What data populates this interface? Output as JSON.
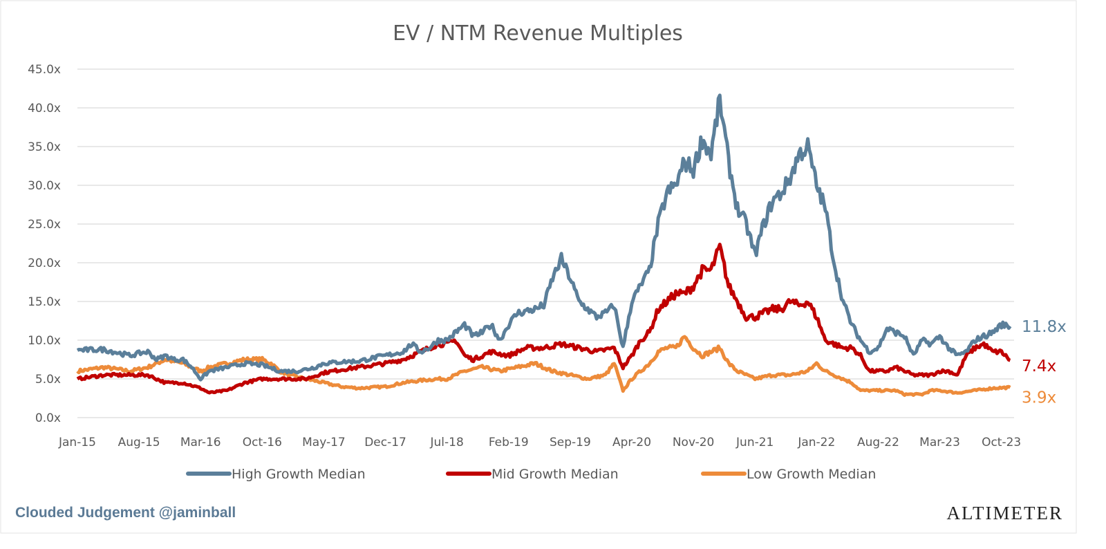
{
  "chart_data": {
    "type": "line",
    "title": "EV / NTM Revenue Multiples",
    "xlabel": "",
    "ylabel": "",
    "ylim": [
      0,
      45
    ],
    "y_ticks": [
      "0.0x",
      "5.0x",
      "10.0x",
      "15.0x",
      "20.0x",
      "25.0x",
      "30.0x",
      "35.0x",
      "40.0x",
      "45.0x"
    ],
    "y_tick_values": [
      0,
      5,
      10,
      15,
      20,
      25,
      30,
      35,
      40,
      45
    ],
    "x_ticks": [
      "Jan-15",
      "Aug-15",
      "Mar-16",
      "Oct-16",
      "May-17",
      "Dec-17",
      "Jul-18",
      "Feb-19",
      "Sep-19",
      "Apr-20",
      "Nov-20",
      "Jun-21",
      "Jan-22",
      "Aug-22",
      "Mar-23",
      "Oct-23"
    ],
    "x_tick_dates": [
      "2015-01",
      "2015-08",
      "2016-03",
      "2016-10",
      "2017-05",
      "2017-12",
      "2018-07",
      "2019-02",
      "2019-09",
      "2020-04",
      "2020-11",
      "2021-06",
      "2022-01",
      "2022-08",
      "2023-03",
      "2023-10"
    ],
    "xlim": [
      "2015-01",
      "2023-11"
    ],
    "grid": "horizontal",
    "legend_placement": "bottom",
    "series": [
      {
        "name": "High Growth Median",
        "color": "#5b7f9a",
        "end_label": "11.8x",
        "points": [
          [
            "2015-01",
            8.7
          ],
          [
            "2015-04",
            8.8
          ],
          [
            "2015-07",
            8.0
          ],
          [
            "2015-08",
            8.3
          ],
          [
            "2015-09",
            8.5
          ],
          [
            "2015-10",
            7.5
          ],
          [
            "2015-11",
            8.0
          ],
          [
            "2015-12",
            7.5
          ],
          [
            "2016-01",
            7.5
          ],
          [
            "2016-02",
            6.5
          ],
          [
            "2016-03",
            5.0
          ],
          [
            "2016-04",
            6.0
          ],
          [
            "2016-06",
            6.5
          ],
          [
            "2016-08",
            7.0
          ],
          [
            "2016-10",
            6.8
          ],
          [
            "2016-12",
            6.0
          ],
          [
            "2017-02",
            6.0
          ],
          [
            "2017-04",
            6.5
          ],
          [
            "2017-05",
            7.0
          ],
          [
            "2017-07",
            7.2
          ],
          [
            "2017-09",
            7.3
          ],
          [
            "2017-11",
            7.8
          ],
          [
            "2017-12",
            8.0
          ],
          [
            "2018-02",
            8.5
          ],
          [
            "2018-03",
            9.5
          ],
          [
            "2018-04",
            8.5
          ],
          [
            "2018-05",
            9.0
          ],
          [
            "2018-06",
            10.0
          ],
          [
            "2018-07",
            10.0
          ],
          [
            "2018-08",
            11.0
          ],
          [
            "2018-09",
            12.0
          ],
          [
            "2018-10",
            10.5
          ],
          [
            "2018-11",
            11.0
          ],
          [
            "2018-12",
            12.0
          ],
          [
            "2019-01",
            10.0
          ],
          [
            "2019-02",
            12.0
          ],
          [
            "2019-03",
            13.5
          ],
          [
            "2019-05",
            14.0
          ],
          [
            "2019-06",
            14.5
          ],
          [
            "2019-07",
            18.0
          ],
          [
            "2019-08",
            20.5
          ],
          [
            "2019-09",
            18.0
          ],
          [
            "2019-10",
            15.0
          ],
          [
            "2019-11",
            14.0
          ],
          [
            "2019-12",
            13.0
          ],
          [
            "2020-01",
            13.5
          ],
          [
            "2020-02",
            14.5
          ],
          [
            "2020-03",
            9.0
          ],
          [
            "2020-04",
            15.0
          ],
          [
            "2020-05",
            17.0
          ],
          [
            "2020-06",
            19.0
          ],
          [
            "2020-07",
            25.0
          ],
          [
            "2020-08",
            29.0
          ],
          [
            "2020-09",
            30.0
          ],
          [
            "2020-10",
            33.0
          ],
          [
            "2020-11",
            32.0
          ],
          [
            "2020-12",
            36.0
          ],
          [
            "2021-01",
            34.0
          ],
          [
            "2021-02",
            41.0
          ],
          [
            "2021-03",
            33.0
          ],
          [
            "2021-04",
            27.0
          ],
          [
            "2021-05",
            25.0
          ],
          [
            "2021-06",
            21.0
          ],
          [
            "2021-07",
            25.0
          ],
          [
            "2021-08",
            28.0
          ],
          [
            "2021-09",
            29.0
          ],
          [
            "2021-10",
            31.0
          ],
          [
            "2021-11",
            34.0
          ],
          [
            "2021-12",
            35.0
          ],
          [
            "2022-01",
            30.0
          ],
          [
            "2022-02",
            27.0
          ],
          [
            "2022-03",
            20.0
          ],
          [
            "2022-04",
            15.0
          ],
          [
            "2022-05",
            12.0
          ],
          [
            "2022-06",
            10.0
          ],
          [
            "2022-07",
            8.5
          ],
          [
            "2022-08",
            9.0
          ],
          [
            "2022-09",
            11.5
          ],
          [
            "2022-10",
            11.0
          ],
          [
            "2022-11",
            10.5
          ],
          [
            "2022-12",
            8.0
          ],
          [
            "2023-01",
            10.0
          ],
          [
            "2023-02",
            9.5
          ],
          [
            "2023-03",
            10.5
          ],
          [
            "2023-04",
            9.0
          ],
          [
            "2023-05",
            8.0
          ],
          [
            "2023-06",
            8.5
          ],
          [
            "2023-07",
            10.0
          ],
          [
            "2023-08",
            10.5
          ],
          [
            "2023-09",
            11.0
          ],
          [
            "2023-10",
            12.0
          ],
          [
            "2023-11",
            11.8
          ]
        ]
      },
      {
        "name": "Mid Growth Median",
        "color": "#c00000",
        "end_label": "7.4x",
        "points": [
          [
            "2015-01",
            5.0
          ],
          [
            "2015-04",
            5.5
          ],
          [
            "2015-07",
            5.5
          ],
          [
            "2015-09",
            5.5
          ],
          [
            "2015-11",
            4.5
          ],
          [
            "2016-01",
            4.5
          ],
          [
            "2016-03",
            3.8
          ],
          [
            "2016-04",
            3.2
          ],
          [
            "2016-06",
            3.5
          ],
          [
            "2016-08",
            4.5
          ],
          [
            "2016-10",
            5.0
          ],
          [
            "2017-01",
            5.0
          ],
          [
            "2017-03",
            5.0
          ],
          [
            "2017-05",
            5.8
          ],
          [
            "2017-07",
            6.2
          ],
          [
            "2017-09",
            6.5
          ],
          [
            "2017-12",
            7.0
          ],
          [
            "2018-02",
            7.5
          ],
          [
            "2018-04",
            8.5
          ],
          [
            "2018-06",
            9.5
          ],
          [
            "2018-07",
            9.5
          ],
          [
            "2018-08",
            10.0
          ],
          [
            "2018-09",
            8.0
          ],
          [
            "2018-10",
            7.5
          ],
          [
            "2018-12",
            8.5
          ],
          [
            "2019-02",
            8.0
          ],
          [
            "2019-04",
            9.0
          ],
          [
            "2019-06",
            9.0
          ],
          [
            "2019-08",
            9.5
          ],
          [
            "2019-10",
            9.0
          ],
          [
            "2019-12",
            8.5
          ],
          [
            "2020-02",
            9.0
          ],
          [
            "2020-03",
            6.5
          ],
          [
            "2020-04",
            8.0
          ],
          [
            "2020-05",
            10.0
          ],
          [
            "2020-06",
            11.0
          ],
          [
            "2020-07",
            14.0
          ],
          [
            "2020-08",
            15.0
          ],
          [
            "2020-09",
            16.0
          ],
          [
            "2020-10",
            16.0
          ],
          [
            "2020-11",
            17.0
          ],
          [
            "2020-12",
            19.0
          ],
          [
            "2021-01",
            19.0
          ],
          [
            "2021-02",
            22.0
          ],
          [
            "2021-03",
            17.0
          ],
          [
            "2021-04",
            15.0
          ],
          [
            "2021-05",
            13.0
          ],
          [
            "2021-06",
            13.0
          ],
          [
            "2021-07",
            13.5
          ],
          [
            "2021-08",
            14.0
          ],
          [
            "2021-09",
            14.0
          ],
          [
            "2021-10",
            15.0
          ],
          [
            "2021-11",
            14.5
          ],
          [
            "2021-12",
            15.0
          ],
          [
            "2022-01",
            13.0
          ],
          [
            "2022-02",
            10.0
          ],
          [
            "2022-03",
            9.5
          ],
          [
            "2022-04",
            9.0
          ],
          [
            "2022-05",
            9.0
          ],
          [
            "2022-06",
            8.0
          ],
          [
            "2022-07",
            6.0
          ],
          [
            "2022-08",
            6.0
          ],
          [
            "2022-09",
            6.0
          ],
          [
            "2022-10",
            6.5
          ],
          [
            "2022-11",
            6.0
          ],
          [
            "2022-12",
            5.5
          ],
          [
            "2023-01",
            5.5
          ],
          [
            "2023-02",
            5.5
          ],
          [
            "2023-03",
            6.0
          ],
          [
            "2023-04",
            6.0
          ],
          [
            "2023-05",
            5.5
          ],
          [
            "2023-06",
            8.0
          ],
          [
            "2023-07",
            9.0
          ],
          [
            "2023-08",
            9.5
          ],
          [
            "2023-09",
            8.5
          ],
          [
            "2023-10",
            8.5
          ],
          [
            "2023-11",
            7.4
          ]
        ]
      },
      {
        "name": "Low Growth Median",
        "color": "#ed8b3a",
        "end_label": "3.9x",
        "points": [
          [
            "2015-01",
            6.0
          ],
          [
            "2015-04",
            6.5
          ],
          [
            "2015-07",
            6.0
          ],
          [
            "2015-09",
            6.5
          ],
          [
            "2015-11",
            7.5
          ],
          [
            "2016-01",
            7.0
          ],
          [
            "2016-03",
            6.0
          ],
          [
            "2016-04",
            6.5
          ],
          [
            "2016-06",
            7.0
          ],
          [
            "2016-08",
            7.5
          ],
          [
            "2016-10",
            7.5
          ],
          [
            "2016-11",
            7.0
          ],
          [
            "2016-12",
            6.0
          ],
          [
            "2017-01",
            5.5
          ],
          [
            "2017-03",
            5.0
          ],
          [
            "2017-05",
            4.5
          ],
          [
            "2017-07",
            4.0
          ],
          [
            "2017-09",
            3.8
          ],
          [
            "2017-12",
            4.0
          ],
          [
            "2018-02",
            4.5
          ],
          [
            "2018-04",
            4.8
          ],
          [
            "2018-06",
            5.0
          ],
          [
            "2018-07",
            5.0
          ],
          [
            "2018-09",
            6.0
          ],
          [
            "2018-11",
            6.5
          ],
          [
            "2019-01",
            6.0
          ],
          [
            "2019-03",
            6.5
          ],
          [
            "2019-05",
            7.0
          ],
          [
            "2019-07",
            6.0
          ],
          [
            "2019-09",
            5.5
          ],
          [
            "2019-11",
            5.0
          ],
          [
            "2020-01",
            5.5
          ],
          [
            "2020-02",
            7.0
          ],
          [
            "2020-03",
            3.5
          ],
          [
            "2020-04",
            5.0
          ],
          [
            "2020-05",
            6.0
          ],
          [
            "2020-06",
            7.0
          ],
          [
            "2020-07",
            8.5
          ],
          [
            "2020-08",
            9.0
          ],
          [
            "2020-09",
            9.0
          ],
          [
            "2020-10",
            10.5
          ],
          [
            "2020-11",
            9.0
          ],
          [
            "2020-12",
            8.0
          ],
          [
            "2021-01",
            8.5
          ],
          [
            "2021-02",
            9.0
          ],
          [
            "2021-03",
            7.0
          ],
          [
            "2021-04",
            6.0
          ],
          [
            "2021-05",
            5.5
          ],
          [
            "2021-06",
            5.0
          ],
          [
            "2021-08",
            5.5
          ],
          [
            "2021-10",
            5.5
          ],
          [
            "2021-12",
            6.0
          ],
          [
            "2022-01",
            7.0
          ],
          [
            "2022-02",
            6.0
          ],
          [
            "2022-03",
            5.5
          ],
          [
            "2022-04",
            5.0
          ],
          [
            "2022-05",
            4.5
          ],
          [
            "2022-06",
            3.5
          ],
          [
            "2022-07",
            3.5
          ],
          [
            "2022-08",
            3.5
          ],
          [
            "2022-09",
            3.5
          ],
          [
            "2022-10",
            3.5
          ],
          [
            "2022-11",
            3.0
          ],
          [
            "2022-12",
            3.0
          ],
          [
            "2023-01",
            3.0
          ],
          [
            "2023-02",
            3.5
          ],
          [
            "2023-03",
            3.5
          ],
          [
            "2023-05",
            3.2
          ],
          [
            "2023-07",
            3.5
          ],
          [
            "2023-09",
            3.8
          ],
          [
            "2023-11",
            3.9
          ]
        ]
      }
    ]
  },
  "footer": {
    "source": "Clouded Judgement @jaminball",
    "source_color": "#5b7a95",
    "brand": "ALTIMETER"
  }
}
